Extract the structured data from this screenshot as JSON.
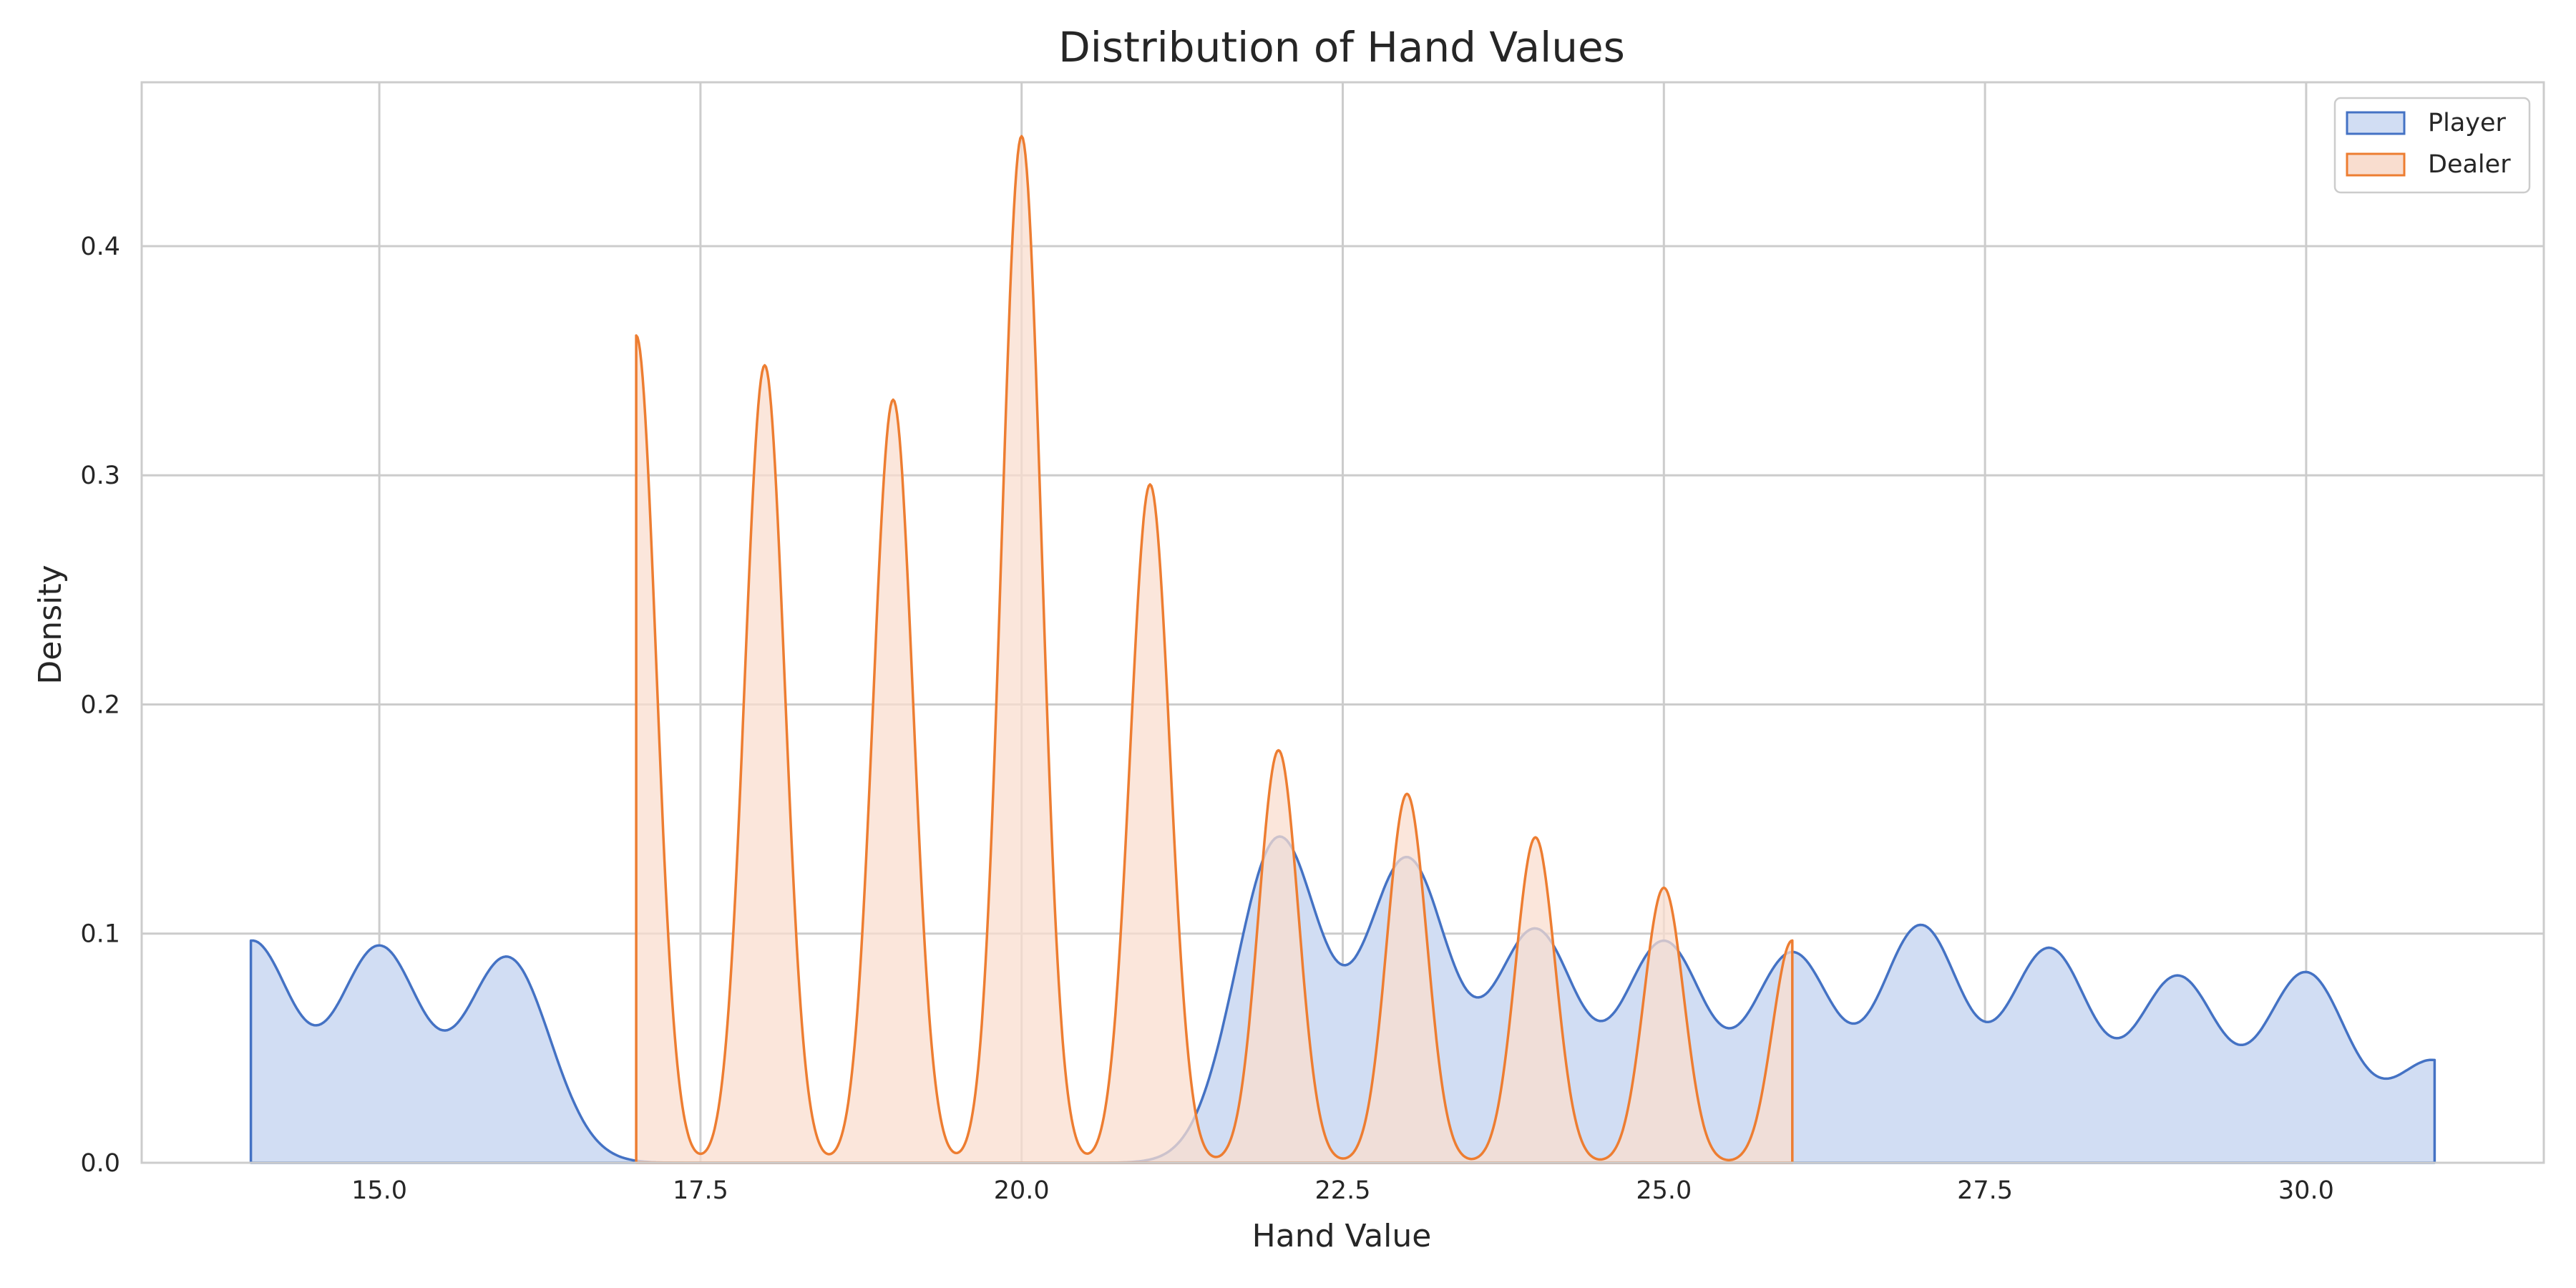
{
  "chart_data": {
    "type": "area",
    "title": "Distribution of Hand Values",
    "xlabel": "Hand Value",
    "ylabel": "Density",
    "xlim": [
      13.15,
      31.85
    ],
    "ylim": [
      0,
      0.4715
    ],
    "xticks": [
      15.0,
      17.5,
      20.0,
      22.5,
      25.0,
      27.5,
      30.0
    ],
    "xtick_labels": [
      "15.0",
      "17.5",
      "20.0",
      "22.5",
      "25.0",
      "27.5",
      "30.0"
    ],
    "yticks": [
      0.0,
      0.1,
      0.2,
      0.3,
      0.4
    ],
    "ytick_labels": [
      "0.0",
      "0.1",
      "0.2",
      "0.3",
      "0.4"
    ],
    "grid": true,
    "legend_position": "top-right",
    "series": [
      {
        "name": "Player",
        "color": "#4472c4",
        "fill": "#d1ddf3",
        "x_range": [
          14,
          31
        ],
        "peaks": [
          {
            "x": 14,
            "y": 0.096
          },
          {
            "x": 15,
            "y": 0.093
          },
          {
            "x": 16,
            "y": 0.089
          },
          {
            "x": 22,
            "y": 0.141
          },
          {
            "x": 23,
            "y": 0.131
          },
          {
            "x": 24,
            "y": 0.1
          },
          {
            "x": 25,
            "y": 0.095
          },
          {
            "x": 26,
            "y": 0.09
          },
          {
            "x": 27,
            "y": 0.102
          },
          {
            "x": 28,
            "y": 0.092
          },
          {
            "x": 29,
            "y": 0.08
          },
          {
            "x": 30,
            "y": 0.082
          },
          {
            "x": 31,
            "y": 0.044
          }
        ]
      },
      {
        "name": "Dealer",
        "color": "#ed7d31",
        "fill": "#f9ddcf",
        "x_range": [
          17,
          26
        ],
        "peaks": [
          {
            "x": 17,
            "y": 0.361
          },
          {
            "x": 18,
            "y": 0.348
          },
          {
            "x": 19,
            "y": 0.333
          },
          {
            "x": 20,
            "y": 0.448
          },
          {
            "x": 21,
            "y": 0.296
          },
          {
            "x": 22,
            "y": 0.18
          },
          {
            "x": 23,
            "y": 0.161
          },
          {
            "x": 24,
            "y": 0.142
          },
          {
            "x": 25,
            "y": 0.12
          },
          {
            "x": 26,
            "y": 0.097
          }
        ]
      }
    ]
  }
}
